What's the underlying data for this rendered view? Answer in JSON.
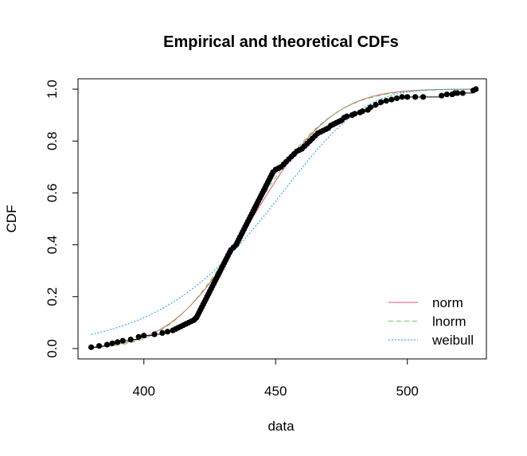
{
  "chart_data": {
    "type": "line",
    "title": "Empirical and theoretical CDFs",
    "xlabel": "data",
    "ylabel": "CDF",
    "xlim": [
      375,
      530
    ],
    "ylim": [
      -0.04,
      1.04
    ],
    "x_ticks": [
      400,
      450,
      500
    ],
    "y_ticks": [
      0.0,
      0.2,
      0.4,
      0.6,
      0.8,
      1.0
    ],
    "x_tick_labels": [
      "400",
      "450",
      "500"
    ],
    "y_tick_labels": [
      "0.0",
      "0.2",
      "0.4",
      "0.6",
      "0.8",
      "1.0"
    ],
    "grid": false,
    "legend_position": "bottom-right",
    "empirical": {
      "color": "#000000",
      "points": [
        [
          380,
          0.005
        ],
        [
          383,
          0.01
        ],
        [
          386,
          0.015
        ],
        [
          388,
          0.02
        ],
        [
          390,
          0.025
        ],
        [
          392,
          0.03
        ],
        [
          395,
          0.035
        ],
        [
          398,
          0.045
        ],
        [
          400,
          0.05
        ],
        [
          404,
          0.055
        ],
        [
          407,
          0.06
        ],
        [
          409,
          0.065
        ],
        [
          411,
          0.07
        ],
        [
          412,
          0.075
        ],
        [
          413,
          0.08
        ],
        [
          414,
          0.085
        ],
        [
          415,
          0.09
        ],
        [
          416,
          0.095
        ],
        [
          417,
          0.1
        ],
        [
          418,
          0.105
        ],
        [
          419,
          0.11
        ],
        [
          419.5,
          0.115
        ],
        [
          420,
          0.12
        ],
        [
          420.5,
          0.13
        ],
        [
          421,
          0.14
        ],
        [
          421.5,
          0.15
        ],
        [
          422,
          0.16
        ],
        [
          422.5,
          0.17
        ],
        [
          423,
          0.18
        ],
        [
          423.5,
          0.19
        ],
        [
          424,
          0.2
        ],
        [
          424.5,
          0.21
        ],
        [
          425,
          0.22
        ],
        [
          425.5,
          0.23
        ],
        [
          426,
          0.24
        ],
        [
          426.5,
          0.25
        ],
        [
          427,
          0.26
        ],
        [
          427.5,
          0.27
        ],
        [
          428,
          0.28
        ],
        [
          428.5,
          0.29
        ],
        [
          429,
          0.3
        ],
        [
          429.5,
          0.31
        ],
        [
          430,
          0.32
        ],
        [
          430.5,
          0.33
        ],
        [
          431,
          0.34
        ],
        [
          431.5,
          0.35
        ],
        [
          432,
          0.36
        ],
        [
          432.5,
          0.37
        ],
        [
          433,
          0.38
        ],
        [
          434,
          0.39
        ],
        [
          435,
          0.4
        ],
        [
          435.5,
          0.41
        ],
        [
          436,
          0.42
        ],
        [
          436.5,
          0.43
        ],
        [
          437,
          0.44
        ],
        [
          437.5,
          0.45
        ],
        [
          438,
          0.46
        ],
        [
          438.5,
          0.47
        ],
        [
          439,
          0.48
        ],
        [
          439.5,
          0.49
        ],
        [
          440,
          0.5
        ],
        [
          440.5,
          0.51
        ],
        [
          441,
          0.52
        ],
        [
          441.5,
          0.53
        ],
        [
          442,
          0.54
        ],
        [
          442.5,
          0.55
        ],
        [
          443,
          0.56
        ],
        [
          443.5,
          0.57
        ],
        [
          444,
          0.58
        ],
        [
          444.5,
          0.59
        ],
        [
          445,
          0.6
        ],
        [
          445.5,
          0.61
        ],
        [
          446,
          0.62
        ],
        [
          446.5,
          0.63
        ],
        [
          447,
          0.64
        ],
        [
          447.5,
          0.65
        ],
        [
          448,
          0.66
        ],
        [
          448.5,
          0.67
        ],
        [
          449,
          0.68
        ],
        [
          450,
          0.69
        ],
        [
          451,
          0.695
        ],
        [
          452,
          0.7
        ],
        [
          453,
          0.71
        ],
        [
          454,
          0.72
        ],
        [
          455,
          0.73
        ],
        [
          456,
          0.74
        ],
        [
          457,
          0.75
        ],
        [
          458,
          0.76
        ],
        [
          459,
          0.765
        ],
        [
          460,
          0.77
        ],
        [
          461,
          0.78
        ],
        [
          462,
          0.79
        ],
        [
          463,
          0.8
        ],
        [
          464,
          0.81
        ],
        [
          465,
          0.82
        ],
        [
          466,
          0.83
        ],
        [
          467,
          0.835
        ],
        [
          468,
          0.84
        ],
        [
          469,
          0.845
        ],
        [
          470,
          0.85
        ],
        [
          471,
          0.86
        ],
        [
          472,
          0.865
        ],
        [
          473,
          0.87
        ],
        [
          474,
          0.875
        ],
        [
          475,
          0.88
        ],
        [
          476,
          0.89
        ],
        [
          477,
          0.895
        ],
        [
          479,
          0.9
        ],
        [
          480,
          0.905
        ],
        [
          482,
          0.91
        ],
        [
          483,
          0.915
        ],
        [
          485,
          0.92
        ],
        [
          486,
          0.93
        ],
        [
          488,
          0.94
        ],
        [
          490,
          0.95
        ],
        [
          492,
          0.955
        ],
        [
          494,
          0.96
        ],
        [
          496,
          0.965
        ],
        [
          498,
          0.97
        ],
        [
          500,
          0.97
        ],
        [
          503,
          0.97
        ],
        [
          506,
          0.97
        ],
        [
          513,
          0.975
        ],
        [
          515,
          0.98
        ],
        [
          517,
          0.98
        ],
        [
          518,
          0.985
        ],
        [
          519,
          0.985
        ],
        [
          521,
          0.985
        ],
        [
          525,
          0.995
        ],
        [
          526,
          1.0
        ]
      ]
    },
    "series": [
      {
        "name": "norm",
        "color": "#DF536B",
        "dash": "",
        "dist": "norm",
        "params": {
          "mean": 441,
          "sd": 24
        }
      },
      {
        "name": "lnorm",
        "color": "#61D04F",
        "dash": "6,4",
        "dist": "lnorm",
        "params": {
          "meanlog": 6.087,
          "sdlog": 0.054
        }
      },
      {
        "name": "weibull",
        "color": "#2297E6",
        "dash": "2,2",
        "dist": "weibull",
        "params": {
          "shape": 16,
          "scale": 455
        }
      }
    ]
  }
}
